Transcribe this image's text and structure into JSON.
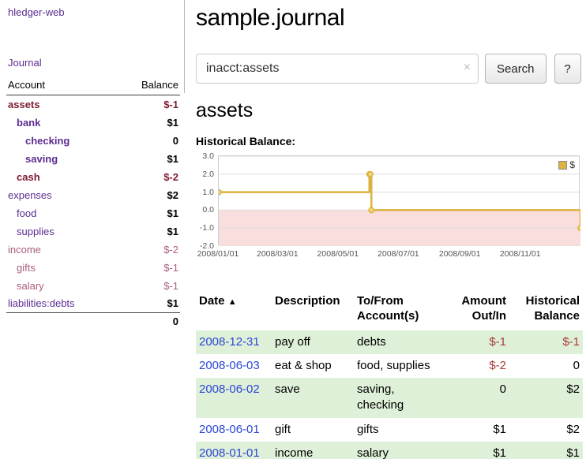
{
  "colors": {
    "link-purple": "#5b2d90",
    "neg-dark": "#7e1b2f",
    "neg-light": "#aa5d80",
    "neg-red": "#a93a35",
    "date-blue": "#2b47d7",
    "row-green": "#dff0d8",
    "chart-gold": "#dcb33e"
  },
  "brand": {
    "title": "hledger-web"
  },
  "nav": {
    "journal": "Journal"
  },
  "sidebar": {
    "header": {
      "account": "Account",
      "balance": "Balance"
    },
    "accounts": [
      {
        "name": "assets",
        "depth": 0,
        "balance": "$-1"
      },
      {
        "name": "bank",
        "depth": 1,
        "balance": "$1"
      },
      {
        "name": "checking",
        "depth": 2,
        "balance": "0"
      },
      {
        "name": "saving",
        "depth": 2,
        "balance": "$1"
      },
      {
        "name": "cash",
        "depth": 1,
        "balance": "$-2"
      },
      {
        "name": "expenses",
        "depth": 0,
        "balance": "$2"
      },
      {
        "name": "food",
        "depth": 1,
        "balance": "$1"
      },
      {
        "name": "supplies",
        "depth": 1,
        "balance": "$1"
      },
      {
        "name": "income",
        "depth": 0,
        "balance": "$-2"
      },
      {
        "name": "gifts",
        "depth": 1,
        "balance": "$-1"
      },
      {
        "name": "salary",
        "depth": 1,
        "balance": "$-1"
      },
      {
        "name": "liabilities:debts",
        "depth": 0,
        "balance": "$1"
      }
    ],
    "total": "0"
  },
  "page": {
    "title": "sample.journal"
  },
  "search": {
    "value": "inacct:assets",
    "clear_icon": "×",
    "button": "Search",
    "help": "?"
  },
  "account_page": {
    "title": "assets",
    "chart_heading": "Historical Balance:"
  },
  "chart_data": {
    "type": "line",
    "step": true,
    "title": "Historical Balance:",
    "ylim": [
      -2,
      3
    ],
    "y_ticks": [
      3,
      2,
      1,
      0,
      -1,
      -2
    ],
    "x_ticks": [
      "2008/01/01",
      "2008/03/01",
      "2008/05/01",
      "2008/07/01",
      "2008/09/01",
      "2008/11/01"
    ],
    "x_range": [
      "2008-01-01",
      "2008-12-31"
    ],
    "legend": {
      "position": "top-right",
      "label": "$"
    },
    "series": [
      {
        "name": "$",
        "points": [
          [
            "2008-01-01",
            1
          ],
          [
            "2008-06-01",
            2
          ],
          [
            "2008-06-02",
            2
          ],
          [
            "2008-06-03",
            0
          ],
          [
            "2008-12-31",
            -1
          ]
        ]
      }
    ],
    "colors": {
      "line": "#dcb33e",
      "marker_fill": "#f0d678",
      "negative_region": "#fadddd",
      "grid": "#dddddd"
    }
  },
  "register": {
    "headers": {
      "date": "Date",
      "sort_icon": "▲",
      "description": "Description",
      "account": "To/From Account(s)",
      "amount": "Amount Out/In",
      "balance": "Historical Balance"
    },
    "rows": [
      {
        "date": "2008-12-31",
        "description": "pay off",
        "account": "debts",
        "amount": "$-1",
        "balance": "$-1"
      },
      {
        "date": "2008-06-03",
        "description": "eat & shop",
        "account": "food, supplies",
        "amount": "$-2",
        "balance": "0"
      },
      {
        "date": "2008-06-02",
        "description": "save",
        "account": "saving, checking",
        "amount": "0",
        "balance": "$2"
      },
      {
        "date": "2008-06-01",
        "description": "gift",
        "account": "gifts",
        "amount": "$1",
        "balance": "$2"
      },
      {
        "date": "2008-01-01",
        "description": "income",
        "account": "salary",
        "amount": "$1",
        "balance": "$1"
      }
    ]
  }
}
